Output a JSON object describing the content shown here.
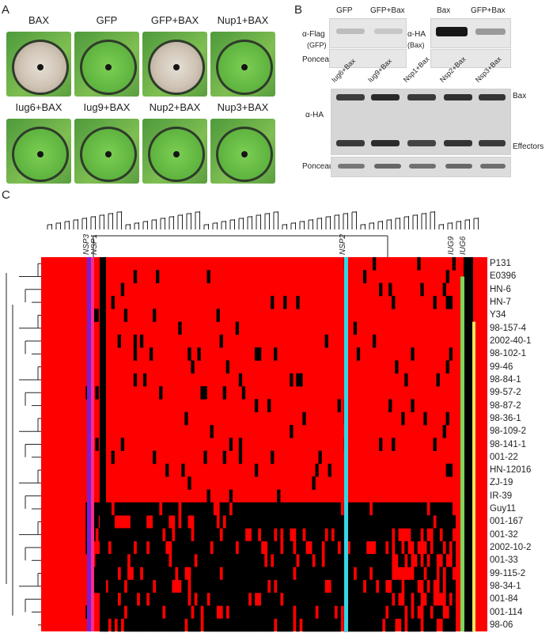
{
  "panels": {
    "a": "A",
    "b": "B",
    "c": "C"
  },
  "panel_a": {
    "leaves": [
      {
        "label": "BAX",
        "state": "dead"
      },
      {
        "label": "GFP",
        "state": "green"
      },
      {
        "label": "GFP+BAX",
        "state": "dead"
      },
      {
        "label": "Nup1+BAX",
        "state": "green"
      },
      {
        "label": "Iug6+BAX",
        "state": "green"
      },
      {
        "label": "Iug9+BAX",
        "state": "green"
      },
      {
        "label": "Nup2+BAX",
        "state": "green"
      },
      {
        "label": "Nup3+BAX",
        "state": "green"
      }
    ]
  },
  "panel_b": {
    "top_left": {
      "col1": "GFP",
      "col2": "GFP+Bax",
      "row1": "α-Flag",
      "row1_sub": "(GFP)",
      "row2": "Ponceau S"
    },
    "top_right": {
      "col1": "Bax",
      "col2": "GFP+Bax",
      "row1": "α-HA",
      "row1_sub": "(Bax)"
    },
    "lanes": [
      "Iug6+Bax",
      "Iug9+Bax",
      "Nsp1+Bax",
      "Nsp2+Bax",
      "Nsp3+Bax"
    ],
    "main_row": "α-HA",
    "ponceau": "Ponceau S",
    "marker_bax": "Bax",
    "marker_effectors": "Effectors"
  },
  "panel_c": {
    "column_labels": [
      "NSP3",
      "NSP1",
      "NSP2",
      "IUG9",
      "IUG6"
    ],
    "rows": [
      "P131",
      "E0396",
      "HN-6",
      "HN-7",
      "Y34",
      "98-157-4",
      "2002-40-1",
      "98-102-1",
      "99-46",
      "98-84-1",
      "99-57-2",
      "98-87-2",
      "98-36-1",
      "98-109-2",
      "98-141-1",
      "001-22",
      "HN-12016",
      "ZJ-19",
      "IR-39",
      "Guy11",
      "001-167",
      "001-32",
      "2002-10-2",
      "001-33",
      "99-115-2",
      "98-34-1",
      "001-84",
      "001-114",
      "98-06"
    ],
    "colors": {
      "absent": "#ff0000",
      "present": "#000000",
      "nsp3": "#7a1fd6",
      "nsp1": "#ff2a88",
      "nsp2": "#33d6e6",
      "iug9": "#7fd65a",
      "iug6": "#f6e65a"
    }
  }
}
